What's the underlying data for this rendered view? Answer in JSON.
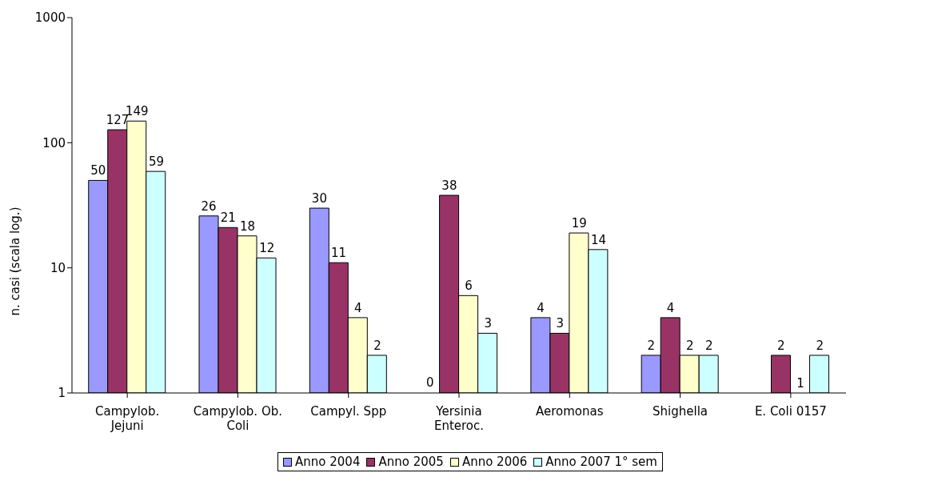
{
  "chart_data": {
    "type": "bar",
    "ylabel": "n. casi (scala log.)",
    "categories": [
      "Campylob. Jejuni",
      "Campylob. Ob. Coli",
      "Campyl. Spp",
      "Yersinia Enteroc.",
      "Aeromonas",
      "Shighella",
      "E. Coli 0157"
    ],
    "series": [
      {
        "name": "Anno 2004",
        "color": "#9999ff",
        "values": [
          50,
          26,
          30,
          null,
          4,
          2,
          null
        ],
        "value_labels": [
          "50",
          "26",
          "30",
          "0",
          "4",
          "2",
          null
        ]
      },
      {
        "name": "Anno 2005",
        "color": "#993366",
        "values": [
          127,
          21,
          11,
          38,
          3,
          4,
          2
        ],
        "value_labels": [
          "127",
          "21",
          "11",
          "38",
          "3",
          "4",
          "2"
        ]
      },
      {
        "name": "Anno 2006",
        "color": "#ffffcc",
        "values": [
          149,
          18,
          4,
          6,
          19,
          2,
          1
        ],
        "value_labels": [
          "149",
          "18",
          "4",
          "6",
          "19",
          "2",
          "1"
        ]
      },
      {
        "name": "Anno 2007 1° sem",
        "color": "#ccffff",
        "values": [
          59,
          12,
          2,
          3,
          14,
          2,
          2
        ],
        "value_labels": [
          "59",
          "12",
          "2",
          "3",
          "14",
          "2",
          "2"
        ]
      }
    ],
    "log": "y",
    "ylim": [
      1,
      1000
    ],
    "yticks": [
      1,
      10,
      100,
      1000
    ],
    "legend": "bottom"
  }
}
